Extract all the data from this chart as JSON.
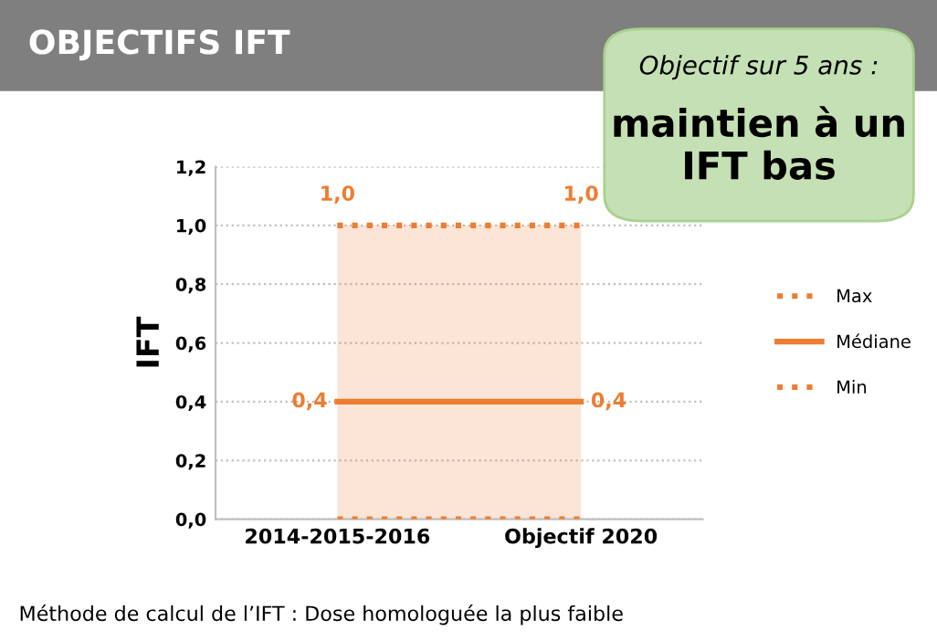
{
  "chart_data": {
    "type": "line",
    "title": "OBJECTIFS IFT",
    "ylabel": "IFT",
    "categories": [
      "2014-2015-2016",
      "Objectif 2020"
    ],
    "series": [
      {
        "name": "Max",
        "color": "#ed7d31",
        "values": [
          1.0,
          1.0
        ],
        "line_style": "dotted",
        "value_labels": [
          "1,0",
          "1,0"
        ]
      },
      {
        "name": "Médiane",
        "color": "#ed7d31",
        "values": [
          0.4,
          0.4
        ],
        "line_style": "solid",
        "value_labels": [
          "0,4",
          "0,4"
        ],
        "lower": [
          0.0,
          0.0
        ],
        "upper": [
          1.0,
          1.0
        ]
      },
      {
        "name": "Min",
        "color": "#ed7d31",
        "values": [
          0.0,
          0.0
        ],
        "line_style": "dotted"
      }
    ],
    "ylim": [
      0,
      1.2
    ],
    "yticks": [
      {
        "value": 0,
        "label": "0,0"
      },
      {
        "value": 0.2,
        "label": "0,2"
      },
      {
        "value": 0.4,
        "label": "0,4"
      },
      {
        "value": 0.6,
        "label": "0,6"
      },
      {
        "value": 0.8,
        "label": "0,8"
      },
      {
        "value": 1.0,
        "label": "1,0"
      },
      {
        "value": 1.2,
        "label": "1,2"
      }
    ],
    "grid": "y",
    "legend": "right",
    "marker": "none",
    "annotations": [
      "Objectif sur 5 ans :",
      "maintien à un IFT bas",
      "Méthode de calcul de l’IFT : Dose homologuée la plus faible"
    ]
  }
}
